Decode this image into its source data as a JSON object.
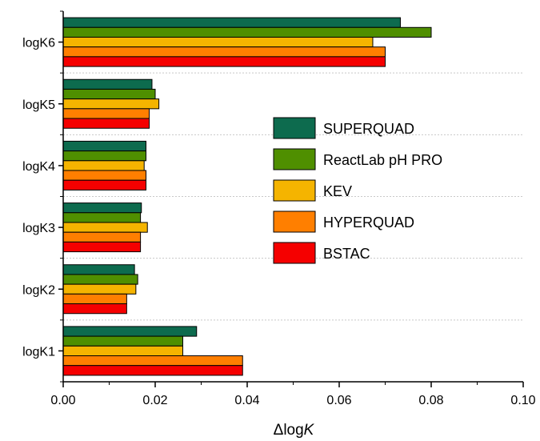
{
  "chart_data": {
    "type": "bar",
    "orientation": "horizontal",
    "categories": [
      "logK1",
      "logK2",
      "logK3",
      "logK4",
      "logK5",
      "logK6"
    ],
    "series": [
      {
        "name": "SUPERQUAD",
        "color": "#0d6b4e",
        "values": [
          0.029,
          0.0155,
          0.017,
          0.018,
          0.0193,
          0.0733
        ]
      },
      {
        "name": "ReactLab pH PRO",
        "color": "#4f8f00",
        "values": [
          0.026,
          0.0162,
          0.0168,
          0.018,
          0.02,
          0.08
        ]
      },
      {
        "name": "KEV",
        "color": "#f5b400",
        "values": [
          0.026,
          0.0158,
          0.0183,
          0.0176,
          0.0208,
          0.0673
        ]
      },
      {
        "name": "HYPERQUAD",
        "color": "#ff7f00",
        "values": [
          0.039,
          0.0138,
          0.0168,
          0.018,
          0.0187,
          0.07
        ]
      },
      {
        "name": "BSTAC",
        "color": "#f50000",
        "values": [
          0.039,
          0.0138,
          0.0168,
          0.018,
          0.0187,
          0.07
        ]
      }
    ],
    "xlabel_prefix": "Δlog",
    "xlabel_italic": "K",
    "xlim": [
      0,
      0.1
    ],
    "xticks": [
      "0.00",
      "0.02",
      "0.04",
      "0.06",
      "0.08",
      "0.10"
    ],
    "grid": "horizontal dashed separators",
    "legend_position": "right-middle"
  }
}
